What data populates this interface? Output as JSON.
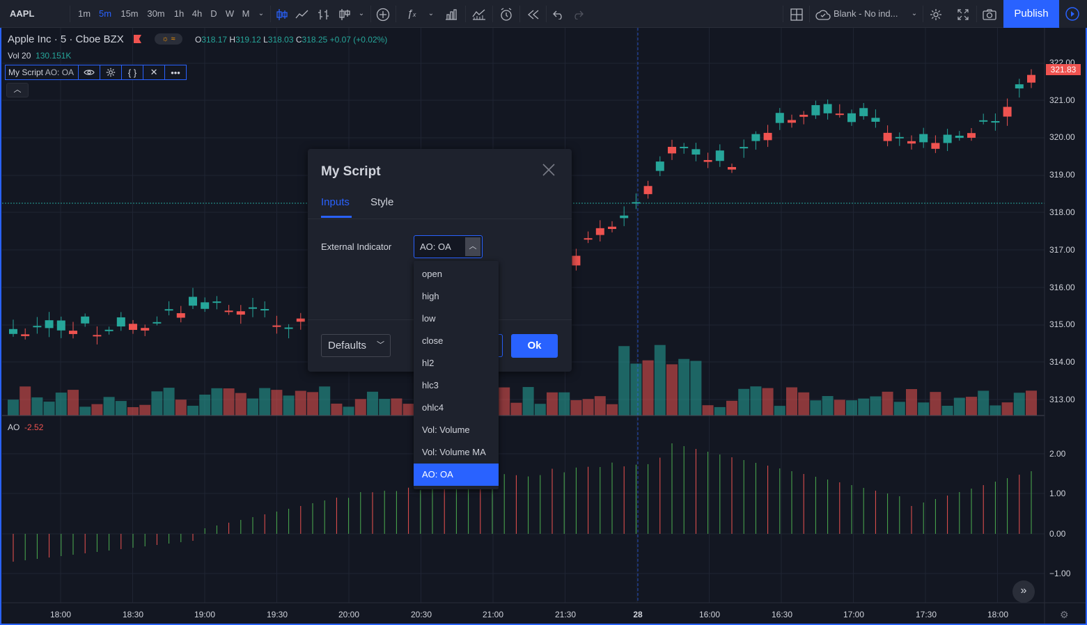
{
  "toolbar": {
    "symbol": "AAPL",
    "intervals": [
      "1m",
      "5m",
      "15m",
      "30m",
      "1h",
      "4h",
      "D",
      "W",
      "M"
    ],
    "active_interval": "5m",
    "layout_name": "Blank - No ind...",
    "publish_label": "Publish",
    "icons": [
      "bar-style-icon",
      "line-style-icon",
      "compare-icon",
      "indicators-icon",
      "add-icon",
      "fx-icon",
      "bars-icon",
      "alert-icon",
      "replay-icon",
      "undo-icon",
      "redo-icon",
      "layout-icon",
      "cloud-icon",
      "settings-icon",
      "fullscreen-icon",
      "camera-icon",
      "play-icon"
    ]
  },
  "legend": {
    "title": "Apple Inc · 5 · Cboe BZX",
    "o_label": "O",
    "o_value": "318.17",
    "h_label": "H",
    "h_value": "319.12",
    "l_label": "L",
    "l_value": "318.03",
    "c_label": "C",
    "c_value": "318.25",
    "change": "+0.07 (+0.02%)",
    "vol_label": "Vol 20",
    "vol_value": "130.151K",
    "script_label": "My Script",
    "script_value": "AO: OA",
    "ao_label": "AO",
    "ao_value": "-2.52"
  },
  "price_axis": {
    "labels": [
      "322.00",
      "321.00",
      "320.00",
      "319.00",
      "318.00",
      "317.00",
      "316.00",
      "315.00",
      "314.00",
      "313.00"
    ],
    "current_price": "321.83",
    "ao_labels": [
      "2.00",
      "1.00",
      "0.00",
      "−1.00"
    ]
  },
  "time_axis": {
    "labels": [
      "18:00",
      "18:30",
      "19:00",
      "19:30",
      "20:00",
      "20:30",
      "21:00",
      "21:30",
      "28",
      "16:00",
      "16:30",
      "17:00",
      "17:30",
      "18:00"
    ]
  },
  "dialog": {
    "title": "My Script",
    "tabs": [
      "Inputs",
      "Style"
    ],
    "active_tab": "Inputs",
    "field_label": "External Indicator",
    "field_value": "AO: OA",
    "defaults_label": "Defaults",
    "ok_label": "Ok",
    "options": [
      "open",
      "high",
      "low",
      "close",
      "hl2",
      "hlc3",
      "ohlc4",
      "Vol: Volume",
      "Vol: Volume MA",
      "AO: OA"
    ],
    "selected_option": "AO: OA"
  },
  "colors": {
    "up": "#26a69a",
    "down": "#ef5350",
    "accent": "#2962ff",
    "background": "#131722"
  }
}
